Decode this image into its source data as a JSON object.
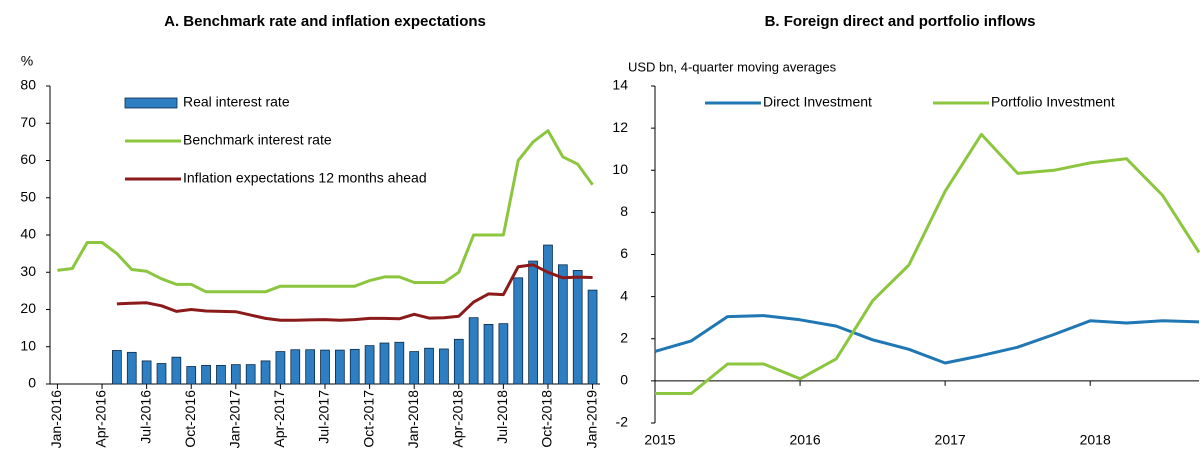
{
  "chart_data": [
    {
      "type": "combo",
      "title": "A. Benchmark rate and inflation expectations",
      "y_label": "%",
      "categories": [
        "Jan-2016",
        null,
        null,
        "Apr-2016",
        null,
        null,
        "Jul-2016",
        null,
        null,
        "Oct-2016",
        null,
        null,
        "Jan-2017",
        null,
        null,
        "Apr-2017",
        null,
        null,
        "Jul-2017",
        null,
        null,
        "Oct-2017",
        null,
        null,
        "Jan-2018",
        null,
        null,
        "Apr-2018",
        null,
        null,
        "Jul-2018",
        null,
        null,
        "Oct-2018",
        null,
        null,
        "Jan-2019"
      ],
      "series": [
        {
          "name": "Real interest rate",
          "type": "bar",
          "color": "#2e7fc1",
          "values": [
            null,
            null,
            null,
            null,
            9,
            8.5,
            6.2,
            5.5,
            7.2,
            4.7,
            5,
            5,
            5.2,
            5.2,
            6.2,
            8.7,
            9.2,
            9.2,
            9.1,
            9.1,
            9.3,
            10.3,
            11,
            11.2,
            8.7,
            9.6,
            9.4,
            12,
            17.8,
            16,
            16.2,
            28.5,
            33,
            37.3,
            32,
            30.5,
            25.2
          ]
        },
        {
          "name": "Benchmark interest rate",
          "type": "line",
          "color": "#8cc63f",
          "values": [
            30.5,
            31,
            38,
            38,
            35,
            30.75,
            30.25,
            28.25,
            26.75,
            26.75,
            24.75,
            24.75,
            24.75,
            24.75,
            24.75,
            26.25,
            26.25,
            26.25,
            26.25,
            26.25,
            26.25,
            27.75,
            28.75,
            28.75,
            27.25,
            27.25,
            27.25,
            30,
            40,
            40,
            40,
            60,
            65,
            68,
            61,
            59,
            53.5
          ]
        },
        {
          "name": "Inflation expectations 12 months ahead",
          "type": "line",
          "color": "#8b1a1a",
          "values": [
            null,
            null,
            null,
            null,
            21.5,
            21.7,
            21.8,
            21,
            19.5,
            20,
            19.6,
            19.5,
            19.4,
            18.5,
            17.6,
            17.1,
            17.1,
            17.2,
            17.3,
            17.1,
            17.3,
            17.6,
            17.6,
            17.5,
            18.7,
            17.7,
            17.8,
            18.2,
            22,
            24.2,
            24,
            31.5,
            32,
            30,
            28.5,
            28.7,
            28.6
          ]
        }
      ],
      "ylim": [
        0,
        80
      ],
      "yticks": [
        0,
        10,
        20,
        30,
        40,
        50,
        60,
        70,
        80
      ],
      "legend": "upper left"
    },
    {
      "type": "line",
      "title": "B. Foreign direct and portfolio inflows",
      "y_label": "USD bn, 4-quarter moving averages",
      "categories": [
        "2015",
        null,
        null,
        null,
        "2016",
        null,
        null,
        null,
        "2017",
        null,
        null,
        null,
        "2018",
        null,
        null,
        null
      ],
      "series": [
        {
          "name": "Direct Investment",
          "color": "#1f77b4",
          "values": [
            1.4,
            1.9,
            3.05,
            3.1,
            2.9,
            2.6,
            1.95,
            1.5,
            0.85,
            1.2,
            1.6,
            2.2,
            2.85,
            2.75,
            2.85,
            2.8
          ]
        },
        {
          "name": "Portfolio Investment",
          "color": "#8cc63f",
          "values": [
            -0.6,
            -0.6,
            0.8,
            0.8,
            0.1,
            1.05,
            3.8,
            5.5,
            9,
            11.7,
            9.85,
            10,
            10.35,
            10.55,
            8.8,
            6.1
          ]
        }
      ],
      "ylim": [
        -2,
        14
      ],
      "yticks": [
        -2,
        0,
        2,
        4,
        6,
        8,
        10,
        12,
        14
      ],
      "legend": "upper center"
    }
  ]
}
